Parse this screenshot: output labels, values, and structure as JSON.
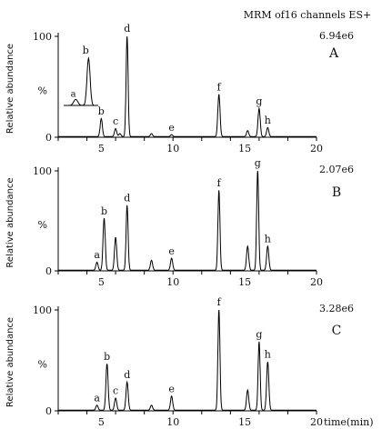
{
  "header": {
    "method_label": "MRM of16 channels ES+"
  },
  "x_unit_label": "time(min)",
  "chart_data": [
    {
      "type": "line",
      "panel_label": "A",
      "intensity_label": "6.94e6",
      "ylabel": "Relative abundance",
      "percent_label": "%",
      "xlim": [
        2,
        20
      ],
      "ylim": [
        0,
        100
      ],
      "x_ticks": [
        2,
        4,
        6,
        8,
        10,
        12,
        14,
        16,
        18,
        20
      ],
      "x_tick_labels": [
        "5",
        "10",
        "15",
        "20"
      ],
      "x_tick_label_values": [
        5,
        10,
        15,
        20
      ],
      "y_tick_labels": [
        "100",
        "0"
      ],
      "peaks": [
        {
          "label": "b",
          "x": 5.0,
          "y": 18
        },
        {
          "label": "c",
          "x": 6.0,
          "y": 8
        },
        {
          "label": "",
          "x": 6.3,
          "y": 3
        },
        {
          "label": "d",
          "x": 6.8,
          "y": 100
        },
        {
          "label": "",
          "x": 8.5,
          "y": 3
        },
        {
          "label": "e",
          "x": 9.9,
          "y": 2
        },
        {
          "label": "f",
          "x": 13.2,
          "y": 42
        },
        {
          "label": "",
          "x": 15.2,
          "y": 6
        },
        {
          "label": "g",
          "x": 16.0,
          "y": 28
        },
        {
          "label": "h",
          "x": 16.6,
          "y": 9
        }
      ],
      "inset": {
        "peaks": [
          {
            "label": "a",
            "y": 8
          },
          {
            "label": "b",
            "y": 62
          }
        ]
      }
    },
    {
      "type": "line",
      "panel_label": "B",
      "intensity_label": "2.07e6",
      "ylabel": "Relative abundance",
      "percent_label": "%",
      "xlim": [
        2,
        20
      ],
      "ylim": [
        0,
        100
      ],
      "x_ticks": [
        2,
        4,
        6,
        8,
        10,
        12,
        14,
        16,
        18,
        20
      ],
      "x_tick_labels": [
        "5",
        "10",
        "15",
        "20"
      ],
      "x_tick_label_values": [
        5,
        10,
        15,
        20
      ],
      "y_tick_labels": [
        "100",
        "0"
      ],
      "peaks": [
        {
          "label": "a",
          "x": 4.7,
          "y": 8
        },
        {
          "label": "b",
          "x": 5.2,
          "y": 52
        },
        {
          "label": "",
          "x": 6.0,
          "y": 33
        },
        {
          "label": "d",
          "x": 6.8,
          "y": 65
        },
        {
          "label": "",
          "x": 8.5,
          "y": 10
        },
        {
          "label": "e",
          "x": 9.9,
          "y": 12
        },
        {
          "label": "f",
          "x": 13.2,
          "y": 80
        },
        {
          "label": "",
          "x": 15.2,
          "y": 24
        },
        {
          "label": "g",
          "x": 15.9,
          "y": 100
        },
        {
          "label": "h",
          "x": 16.6,
          "y": 24
        }
      ]
    },
    {
      "type": "line",
      "panel_label": "C",
      "intensity_label": "3.28e6",
      "ylabel": "Relative abundance",
      "percent_label": "%",
      "xlim": [
        2,
        20
      ],
      "ylim": [
        0,
        100
      ],
      "x_ticks": [
        2,
        4,
        6,
        8,
        10,
        12,
        14,
        16,
        18,
        20
      ],
      "x_tick_labels": [
        "5",
        "10",
        "15",
        "20"
      ],
      "x_tick_label_values": [
        5,
        10,
        15,
        20
      ],
      "y_tick_labels": [
        "100",
        "0"
      ],
      "peaks": [
        {
          "label": "a",
          "x": 4.7,
          "y": 5
        },
        {
          "label": "b",
          "x": 5.4,
          "y": 46
        },
        {
          "label": "c",
          "x": 6.0,
          "y": 12
        },
        {
          "label": "d",
          "x": 6.8,
          "y": 28
        },
        {
          "label": "",
          "x": 8.5,
          "y": 5
        },
        {
          "label": "e",
          "x": 9.9,
          "y": 14
        },
        {
          "label": "f",
          "x": 13.2,
          "y": 100
        },
        {
          "label": "",
          "x": 15.2,
          "y": 20
        },
        {
          "label": "g",
          "x": 16.0,
          "y": 68
        },
        {
          "label": "h",
          "x": 16.6,
          "y": 48
        }
      ]
    }
  ]
}
